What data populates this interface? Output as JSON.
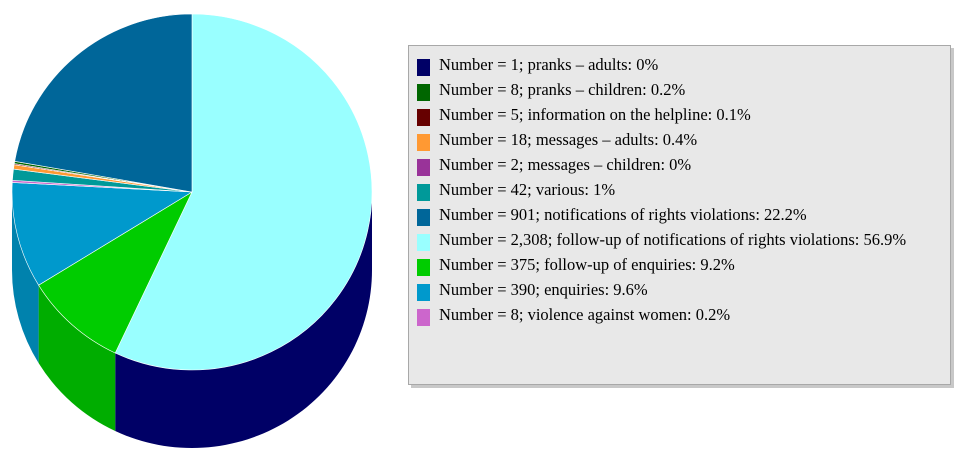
{
  "chart_data": {
    "type": "pie",
    "title": "",
    "slices": [
      {
        "label": "Number = 1; pranks – adults: 0%",
        "value": 0.0,
        "color": "#000066"
      },
      {
        "label": "Number = 8; pranks – children: 0.2%",
        "value": 0.2,
        "color": "#006600"
      },
      {
        "label": "Number = 5; information on the helpline: 0.1%",
        "value": 0.1,
        "color": "#660000"
      },
      {
        "label": "Number = 18; messages – adults: 0.4%",
        "value": 0.4,
        "color": "#ff9933"
      },
      {
        "label": "Number = 2; messages – children: 0%",
        "value": 0.0,
        "color": "#993399"
      },
      {
        "label": "Number = 42; various: 1%",
        "value": 1.0,
        "color": "#009999"
      },
      {
        "label": "Number = 901; notifications of rights violations: 22.2%",
        "value": 22.2,
        "color": "#006699"
      },
      {
        "label": "Number = 2,308; follow-up of notifications of rights violations: 56.9%",
        "value": 56.9,
        "color": "#99ffff"
      },
      {
        "label": "Number = 375; follow-up of enquiries: 9.2%",
        "value": 9.2,
        "color": "#00cc00"
      },
      {
        "label": "Number = 390; enquiries: 9.6%",
        "value": 9.6,
        "color": "#0099cc"
      },
      {
        "label": "Number = 8; violence against women: 0.2%",
        "value": 0.2,
        "color": "#cc66cc"
      }
    ],
    "legend_position": "right"
  }
}
